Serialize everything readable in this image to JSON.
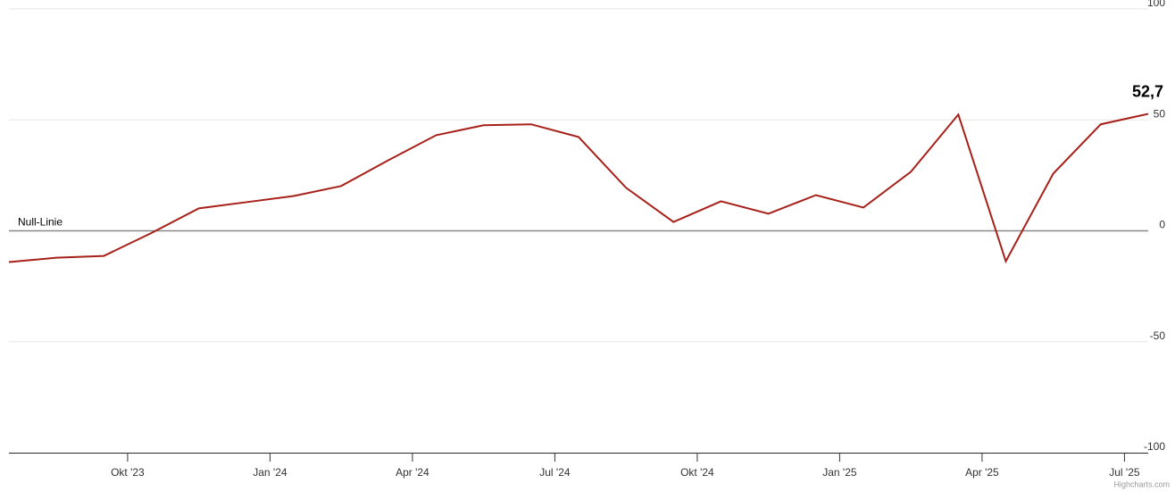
{
  "chart_data": {
    "type": "line",
    "x": [
      "2023-07",
      "2023-08",
      "2023-09",
      "2023-10",
      "2023-11",
      "2023-12",
      "2024-01",
      "2024-02",
      "2024-03",
      "2024-04",
      "2024-05",
      "2024-06",
      "2024-07",
      "2024-08",
      "2024-09",
      "2024-10",
      "2024-11",
      "2024-12",
      "2025-01",
      "2025-02",
      "2025-03",
      "2025-04",
      "2025-05",
      "2025-06",
      "2025-07"
    ],
    "values": [
      -14.1,
      -12.1,
      -11.3,
      -1,
      10.1,
      12.9,
      15.7,
      20.2,
      31.9,
      43.1,
      47.6,
      48.0,
      42.3,
      19.4,
      4.0,
      13.3,
      7.7,
      16.1,
      10.5,
      26.6,
      52.4,
      -13.7,
      25.8,
      48.0,
      52.7
    ],
    "value_labels": [
      null,
      null,
      null,
      null,
      null,
      null,
      null,
      null,
      null,
      null,
      null,
      null,
      null,
      null,
      null,
      null,
      null,
      null,
      null,
      null,
      null,
      null,
      null,
      null,
      "52,7"
    ],
    "color": "#a8201a",
    "xlim": [
      "2023-07",
      "2025-07"
    ],
    "xticks": [
      {
        "value": "2023-10",
        "label": "Okt '23"
      },
      {
        "value": "2024-01",
        "label": "Jan '24"
      },
      {
        "value": "2024-04",
        "label": "Apr '24"
      },
      {
        "value": "2024-07",
        "label": "Jul '24"
      },
      {
        "value": "2024-10",
        "label": "Okt '24"
      },
      {
        "value": "2025-01",
        "label": "Jan '25"
      },
      {
        "value": "2025-04",
        "label": "Apr '25"
      },
      {
        "value": "2025-07",
        "label": "Jul '25"
      }
    ],
    "ylim": [
      -100,
      100
    ],
    "yticks": [
      -100,
      -50,
      0,
      50,
      100
    ],
    "grid": true,
    "plot_line": {
      "value": 0,
      "label": "Null-Linie"
    },
    "credits": "Highcharts.com"
  }
}
